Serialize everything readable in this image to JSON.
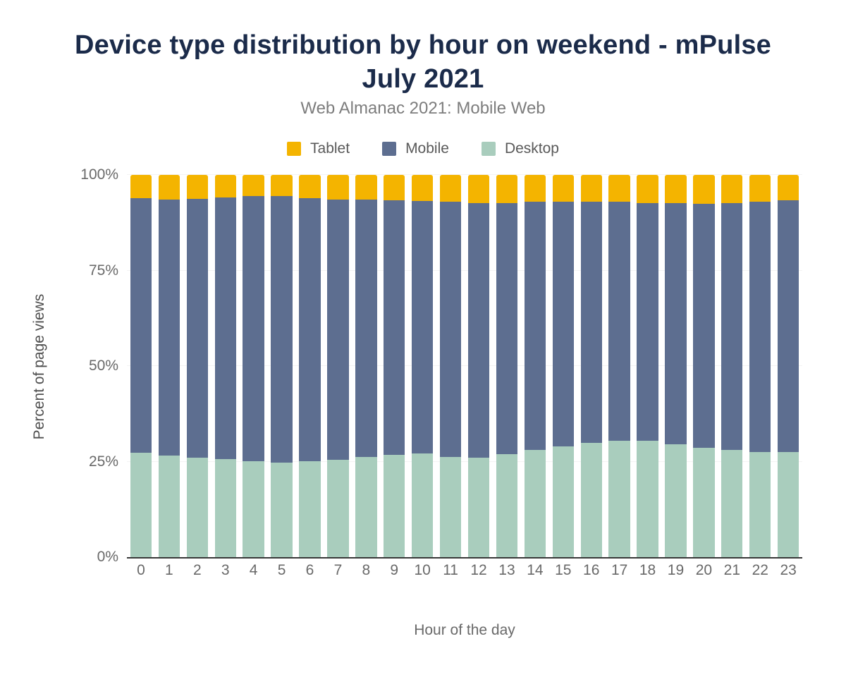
{
  "chart": {
    "title": "Device type distribution by hour on weekend - mPulse July 2021",
    "subtitle": "Web Almanac 2021: Mobile Web",
    "xlabel": "Hour of the day",
    "ylabel": "Percent of page views"
  },
  "chart_data": {
    "type": "bar",
    "stacked": true,
    "title": "Device type distribution by hour on weekend - mPulse July 2021",
    "subtitle": "Web Almanac 2021: Mobile Web",
    "xlabel": "Hour of the day",
    "ylabel": "Percent of page views",
    "ylim": [
      0,
      100
    ],
    "y_ticks": [
      "0%",
      "25%",
      "50%",
      "75%",
      "100%"
    ],
    "legend_position": "top",
    "categories": [
      0,
      1,
      2,
      3,
      4,
      5,
      6,
      7,
      8,
      9,
      10,
      11,
      12,
      13,
      14,
      15,
      16,
      17,
      18,
      19,
      20,
      21,
      22,
      23
    ],
    "series": [
      {
        "name": "Tablet",
        "color": "#f4b400",
        "values": [
          6.1,
          6.5,
          6.2,
          5.9,
          5.6,
          5.6,
          6.0,
          6.4,
          6.5,
          6.6,
          6.9,
          7.1,
          7.3,
          7.3,
          7.1,
          7.0,
          7.0,
          7.0,
          7.3,
          7.4,
          7.5,
          7.3,
          7.0,
          6.6
        ]
      },
      {
        "name": "Mobile",
        "color": "#5d6e90",
        "values": [
          66.6,
          66.9,
          67.7,
          68.5,
          69.3,
          69.7,
          69.0,
          68.1,
          67.3,
          66.7,
          66.0,
          66.7,
          66.6,
          65.7,
          64.9,
          64.0,
          63.1,
          62.6,
          62.3,
          63.0,
          63.9,
          64.7,
          65.5,
          66.0
        ]
      },
      {
        "name": "Desktop",
        "color": "#a9cdbd",
        "values": [
          27.3,
          26.6,
          26.1,
          25.6,
          25.1,
          24.7,
          25.0,
          25.5,
          26.2,
          26.7,
          27.1,
          26.2,
          26.1,
          27.0,
          28.0,
          29.0,
          29.9,
          30.4,
          30.4,
          29.6,
          28.6,
          28.0,
          27.5,
          27.4
        ]
      }
    ]
  }
}
